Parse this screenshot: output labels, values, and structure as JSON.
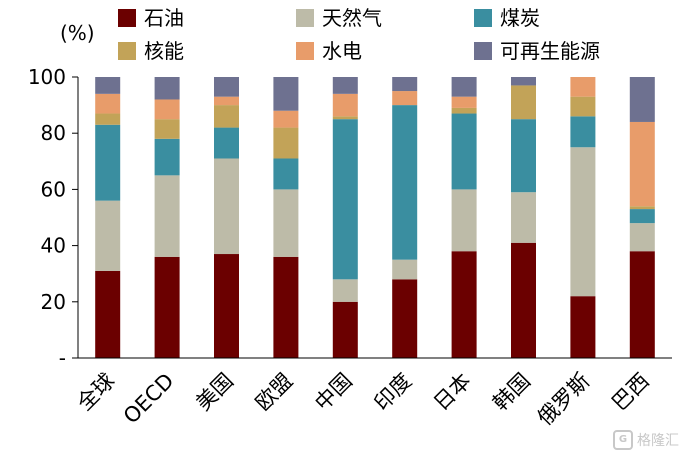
{
  "chart_data": {
    "type": "bar",
    "stacked": true,
    "y_unit_label": "(%)",
    "yticks": [
      "-",
      "20",
      "40",
      "60",
      "80",
      "100"
    ],
    "ylim": [
      0,
      100
    ],
    "categories": [
      "全球",
      "OECD",
      "美国",
      "欧盟",
      "中国",
      "印度",
      "日本",
      "韩国",
      "俄罗斯",
      "巴西"
    ],
    "series": [
      {
        "name": "石油",
        "color": "#6b0000",
        "values": [
          31,
          36,
          37,
          36,
          20,
          28,
          38,
          41,
          22,
          38
        ]
      },
      {
        "name": "天然气",
        "color": "#bdbba8",
        "values": [
          25,
          29,
          34,
          24,
          8,
          7,
          22,
          18,
          53,
          10
        ]
      },
      {
        "name": "煤炭",
        "color": "#3a8ea0",
        "values": [
          27,
          13,
          11,
          11,
          57,
          55,
          27,
          26,
          11,
          5
        ]
      },
      {
        "name": "核能",
        "color": "#c2a358",
        "values": [
          4,
          7,
          8,
          11,
          1,
          0,
          2,
          12,
          7,
          1
        ]
      },
      {
        "name": "水电",
        "color": "#e89c6a",
        "values": [
          7,
          7,
          3,
          6,
          8,
          5,
          4,
          0,
          7,
          30
        ]
      },
      {
        "name": "可再生能源",
        "color": "#6e7190",
        "values": [
          6,
          8,
          7,
          12,
          6,
          5,
          7,
          3,
          0,
          16
        ]
      }
    ],
    "legend_position": "top",
    "grid": false
  },
  "watermark": {
    "text": "格隆汇",
    "icon": "G"
  }
}
